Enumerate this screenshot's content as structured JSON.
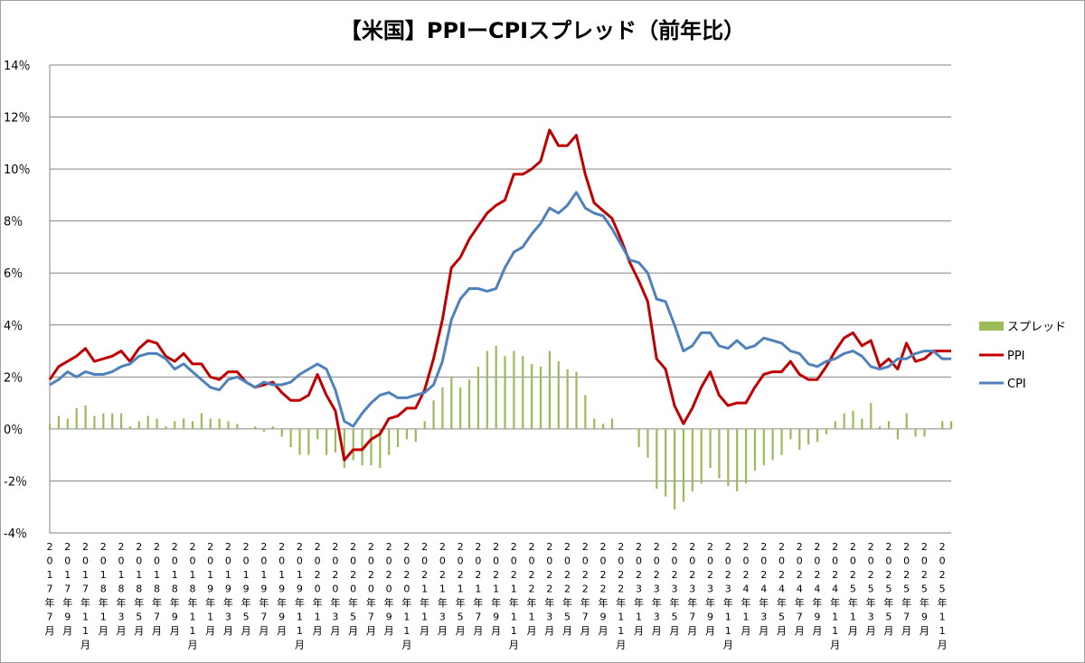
{
  "chart_data": {
    "type": "line",
    "title": "【米国】PPIーCPIスプレッド（前年比）",
    "xlabel": "",
    "ylabel": "",
    "ylim": [
      -4,
      14
    ],
    "y_ticks": [
      "14％",
      "12％",
      "10％",
      "8％",
      "6％",
      "4％",
      "2％",
      "0％",
      "-2％",
      "-4％"
    ],
    "y_tick_values": [
      14,
      12,
      10,
      8,
      6,
      4,
      2,
      0,
      -2,
      -4
    ],
    "x_start": {
      "year": 2017,
      "month": 7
    },
    "x_label_every": 2,
    "x_tick_labels": [
      "2017年7月",
      "2017年9月",
      "2017年11月",
      "2018年1月",
      "2018年3月",
      "2018年5月",
      "2018年7月",
      "2018年9月",
      "2018年11月",
      "2019年1月",
      "2019年3月",
      "2019年5月",
      "2019年7月",
      "2019年9月",
      "2019年11月",
      "2020年1月",
      "2020年3月",
      "2020年5月",
      "2020年7月",
      "2020年9月",
      "2020年11月",
      "2021年1月",
      "2021年3月",
      "2021年5月",
      "2021年7月",
      "2021年9月",
      "2021年11月",
      "2022年1月",
      "2022年3月",
      "2022年5月",
      "2022年7月",
      "2022年9月",
      "2022年11月",
      "2023年1月",
      "2023年3月",
      "2023年5月",
      "2023年7月",
      "2023年9月",
      "2023年11月",
      "2024年1月",
      "2024年3月",
      "2024年5月",
      "2024年7月",
      "2024年9月",
      "2024年11月",
      "2025年1月",
      "2025年3月",
      "2025年5月",
      "2025年7月",
      "2025年9月",
      "2025年11月"
    ],
    "legend": [
      "スプレッド",
      "PPI",
      "CPI"
    ],
    "legend_position": "right",
    "series": [
      {
        "name": "スプレッド",
        "type": "bar",
        "color": "#9bbb59",
        "values": [
          0.2,
          0.5,
          0.4,
          0.8,
          0.9,
          0.5,
          0.6,
          0.6,
          0.6,
          0.1,
          0.3,
          0.5,
          0.4,
          0.1,
          0.3,
          0.4,
          0.3,
          0.6,
          0.4,
          0.4,
          0.3,
          0.2,
          0.0,
          0.1,
          -0.1,
          0.1,
          -0.3,
          -0.7,
          -1.0,
          -1.0,
          -0.4,
          -1.0,
          -0.9,
          -1.5,
          -1.2,
          -1.4,
          -1.4,
          -1.5,
          -1.0,
          -0.7,
          -0.4,
          -0.5,
          0.3,
          1.1,
          1.6,
          2.0,
          1.6,
          1.9,
          2.4,
          3.0,
          3.2,
          2.8,
          3.0,
          2.8,
          2.5,
          2.4,
          3.0,
          2.6,
          2.3,
          2.2,
          1.3,
          0.4,
          0.2,
          0.4,
          0.0,
          0.0,
          -0.7,
          -1.1,
          -2.3,
          -2.6,
          -3.1,
          -2.8,
          -2.4,
          -2.1,
          -1.5,
          -1.9,
          -2.2,
          -2.4,
          -2.1,
          -1.6,
          -1.4,
          -1.2,
          -1.0,
          -0.4,
          -0.8,
          -0.6,
          -0.5,
          -0.2,
          0.3,
          0.6,
          0.7,
          0.4,
          1.0,
          0.1,
          0.3,
          -0.4,
          0.6,
          -0.3,
          -0.3,
          0.0,
          0.3,
          0.3
        ]
      },
      {
        "name": "PPI",
        "type": "line",
        "color": "#c00000",
        "values": [
          1.9,
          2.4,
          2.6,
          2.8,
          3.1,
          2.6,
          2.7,
          2.8,
          3.0,
          2.6,
          3.1,
          3.4,
          3.3,
          2.8,
          2.6,
          2.9,
          2.5,
          2.5,
          2.0,
          1.9,
          2.2,
          2.2,
          1.8,
          1.6,
          1.7,
          1.8,
          1.4,
          1.1,
          1.1,
          1.3,
          2.1,
          1.3,
          0.7,
          -1.2,
          -0.8,
          -0.8,
          -0.4,
          -0.2,
          0.4,
          0.5,
          0.8,
          0.8,
          1.5,
          2.7,
          4.2,
          6.2,
          6.6,
          7.3,
          7.8,
          8.3,
          8.6,
          8.8,
          9.8,
          9.8,
          10.0,
          10.3,
          11.5,
          10.9,
          10.9,
          11.3,
          9.8,
          8.7,
          8.4,
          8.1,
          7.3,
          6.4,
          5.7,
          4.9,
          2.7,
          2.3,
          0.9,
          0.2,
          0.8,
          1.6,
          2.2,
          1.3,
          0.9,
          1.0,
          1.0,
          1.6,
          2.1,
          2.2,
          2.2,
          2.6,
          2.1,
          1.9,
          1.9,
          2.4,
          3.0,
          3.5,
          3.7,
          3.2,
          3.4,
          2.4,
          2.7,
          2.3,
          3.3,
          2.6,
          2.7,
          3.0,
          3.0,
          3.0
        ]
      },
      {
        "name": "CPI",
        "type": "line",
        "color": "#4f81bd",
        "values": [
          1.7,
          1.9,
          2.2,
          2.0,
          2.2,
          2.1,
          2.1,
          2.2,
          2.4,
          2.5,
          2.8,
          2.9,
          2.9,
          2.7,
          2.3,
          2.5,
          2.2,
          1.9,
          1.6,
          1.5,
          1.9,
          2.0,
          1.8,
          1.6,
          1.8,
          1.7,
          1.7,
          1.8,
          2.1,
          2.3,
          2.5,
          2.3,
          1.5,
          0.3,
          0.1,
          0.6,
          1.0,
          1.3,
          1.4,
          1.2,
          1.2,
          1.3,
          1.4,
          1.7,
          2.6,
          4.2,
          5.0,
          5.4,
          5.4,
          5.3,
          5.4,
          6.2,
          6.8,
          7.0,
          7.5,
          7.9,
          8.5,
          8.3,
          8.6,
          9.1,
          8.5,
          8.3,
          8.2,
          7.7,
          7.1,
          6.5,
          6.4,
          6.0,
          5.0,
          4.9,
          4.0,
          3.0,
          3.2,
          3.7,
          3.7,
          3.2,
          3.1,
          3.4,
          3.1,
          3.2,
          3.5,
          3.4,
          3.3,
          3.0,
          2.9,
          2.5,
          2.4,
          2.6,
          2.7,
          2.9,
          3.0,
          2.8,
          2.4,
          2.3,
          2.4,
          2.7,
          2.7,
          2.9,
          3.0,
          3.0,
          2.7,
          2.7
        ]
      }
    ]
  }
}
